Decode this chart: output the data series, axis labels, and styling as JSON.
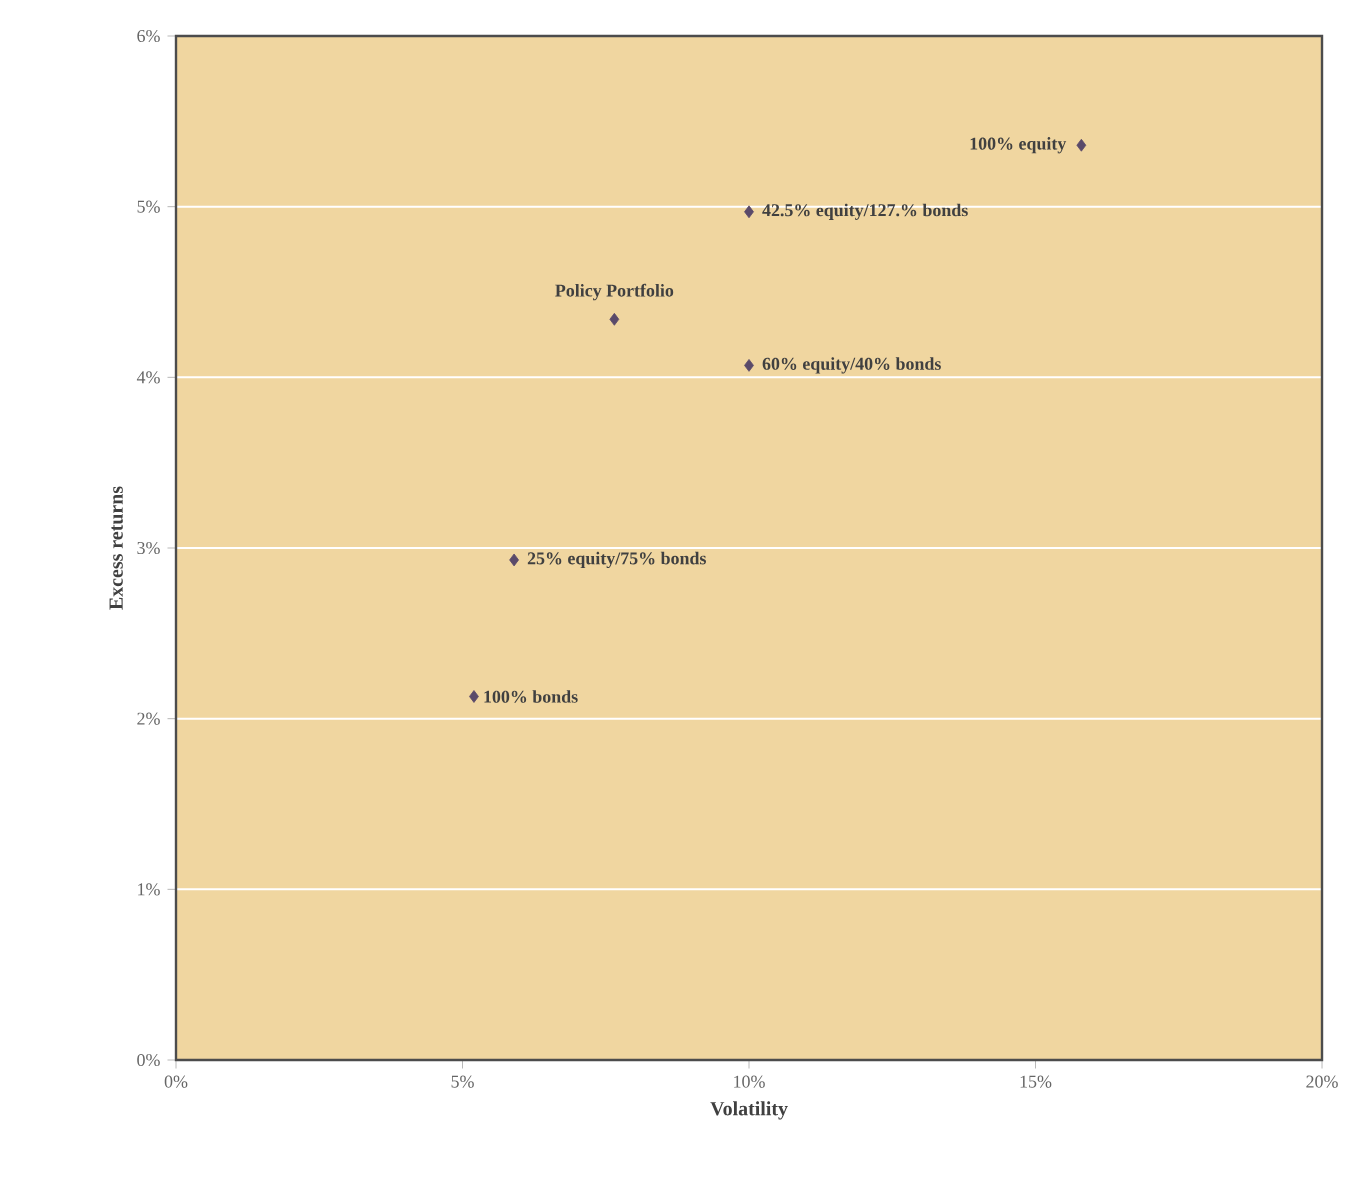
{
  "chart_data": {
    "type": "scatter",
    "xlabel": "Volatility",
    "ylabel": "Excess returns",
    "x": [
      15.8,
      10.0,
      7.65,
      10.0,
      5.9,
      5.2
    ],
    "values": [
      5.36,
      4.97,
      4.34,
      4.07,
      2.93,
      2.13
    ],
    "color": "#5a4a6a",
    "marker": "diamond",
    "grid": "y",
    "xlim": [
      0,
      20
    ],
    "ylim": [
      0,
      6
    ],
    "xticks": [
      {
        "value": 0,
        "label": "0%"
      },
      {
        "value": 5,
        "label": "5%"
      },
      {
        "value": 10,
        "label": "10%"
      },
      {
        "value": 15,
        "label": "15%"
      },
      {
        "value": 20,
        "label": "20%"
      }
    ],
    "yticks": [
      {
        "value": 0,
        "label": "0%"
      },
      {
        "value": 1,
        "label": "1%"
      },
      {
        "value": 2,
        "label": "2%"
      },
      {
        "value": 3,
        "label": "3%"
      },
      {
        "value": 4,
        "label": "4%"
      },
      {
        "value": 5,
        "label": "5%"
      },
      {
        "value": 6,
        "label": "6%"
      }
    ],
    "annotations": [
      {
        "text": "100% equity",
        "x": 15.8,
        "y": 5.36
      },
      {
        "text": "42.5% equity/127.% bonds",
        "x": 10.0,
        "y": 4.97
      },
      {
        "text": "Policy Portfolio",
        "x": 7.65,
        "y": 4.34
      },
      {
        "text": "60% equity/40% bonds",
        "x": 10.0,
        "y": 4.07
      },
      {
        "text": "25% equity/75% bonds",
        "x": 5.9,
        "y": 2.93
      },
      {
        "text": "100% bonds",
        "x": 5.2,
        "y": 2.13
      }
    ]
  }
}
